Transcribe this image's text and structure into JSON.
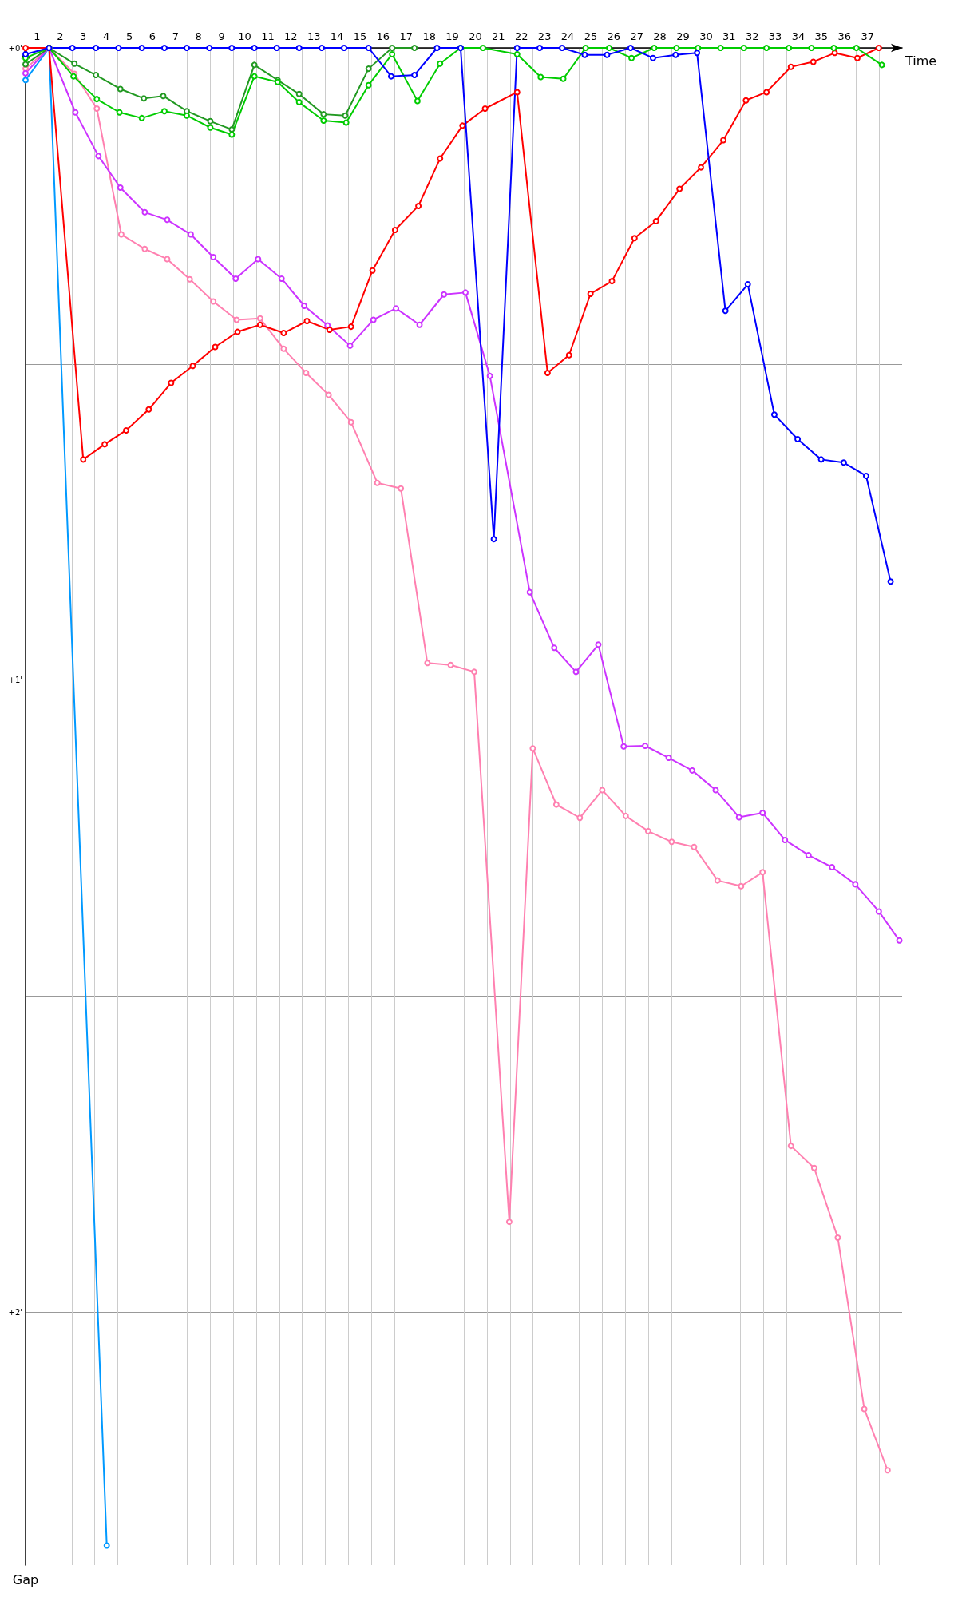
{
  "chart_data": {
    "type": "line",
    "xlabel": "Time",
    "ylabel": "Gap",
    "marker": "circle",
    "grid": true,
    "xlim": [
      0,
      38
    ],
    "ylim": [
      2.4,
      0
    ],
    "xticks": [
      {
        "value": 0.5,
        "label": "1"
      },
      {
        "value": 1.5,
        "label": "2"
      },
      {
        "value": 2.5,
        "label": "3"
      },
      {
        "value": 3.5,
        "label": "4"
      },
      {
        "value": 4.5,
        "label": "5"
      },
      {
        "value": 5.5,
        "label": "6"
      },
      {
        "value": 6.5,
        "label": "7"
      },
      {
        "value": 7.5,
        "label": "8"
      },
      {
        "value": 8.5,
        "label": "9"
      },
      {
        "value": 9.5,
        "label": "10"
      },
      {
        "value": 10.5,
        "label": "11"
      },
      {
        "value": 11.5,
        "label": "12"
      },
      {
        "value": 12.5,
        "label": "13"
      },
      {
        "value": 13.5,
        "label": "14"
      },
      {
        "value": 14.5,
        "label": "15"
      },
      {
        "value": 15.5,
        "label": "16"
      },
      {
        "value": 16.5,
        "label": "17"
      },
      {
        "value": 17.5,
        "label": "18"
      },
      {
        "value": 18.5,
        "label": "19"
      },
      {
        "value": 19.5,
        "label": "20"
      },
      {
        "value": 20.5,
        "label": "21"
      },
      {
        "value": 21.5,
        "label": "22"
      },
      {
        "value": 22.5,
        "label": "23"
      },
      {
        "value": 23.5,
        "label": "24"
      },
      {
        "value": 24.5,
        "label": "25"
      },
      {
        "value": 25.5,
        "label": "26"
      },
      {
        "value": 26.5,
        "label": "27"
      },
      {
        "value": 27.5,
        "label": "28"
      },
      {
        "value": 28.5,
        "label": "29"
      },
      {
        "value": 29.5,
        "label": "30"
      },
      {
        "value": 30.5,
        "label": "31"
      },
      {
        "value": 31.5,
        "label": "32"
      },
      {
        "value": 32.5,
        "label": "33"
      },
      {
        "value": 33.5,
        "label": "34"
      },
      {
        "value": 34.5,
        "label": "35"
      },
      {
        "value": 35.5,
        "label": "36"
      },
      {
        "value": 36.5,
        "label": "37"
      },
      {
        "value": 1,
        "label": null
      },
      {
        "value": 2,
        "label": null
      },
      {
        "value": 3,
        "label": null
      },
      {
        "value": 4,
        "label": null
      },
      {
        "value": 5,
        "label": null
      },
      {
        "value": 6,
        "label": null
      },
      {
        "value": 7,
        "label": null
      },
      {
        "value": 8,
        "label": null
      },
      {
        "value": 9,
        "label": null
      },
      {
        "value": 10,
        "label": null
      },
      {
        "value": 11,
        "label": null
      },
      {
        "value": 12,
        "label": null
      },
      {
        "value": 13,
        "label": null
      },
      {
        "value": 14,
        "label": null
      },
      {
        "value": 15,
        "label": null
      },
      {
        "value": 16,
        "label": null
      },
      {
        "value": 17,
        "label": null
      },
      {
        "value": 18,
        "label": null
      },
      {
        "value": 19,
        "label": null
      },
      {
        "value": 20,
        "label": null
      },
      {
        "value": 21,
        "label": null
      },
      {
        "value": 22,
        "label": null
      },
      {
        "value": 23,
        "label": null
      },
      {
        "value": 24,
        "label": null
      },
      {
        "value": 25,
        "label": null
      },
      {
        "value": 26,
        "label": null
      },
      {
        "value": 27,
        "label": null
      },
      {
        "value": 28,
        "label": null
      },
      {
        "value": 29,
        "label": null
      },
      {
        "value": 30,
        "label": null
      },
      {
        "value": 31,
        "label": null
      },
      {
        "value": 32,
        "label": null
      },
      {
        "value": 33,
        "label": null
      },
      {
        "value": 34,
        "label": null
      },
      {
        "value": 35,
        "label": null
      },
      {
        "value": 36,
        "label": null
      },
      {
        "value": 37,
        "label": null
      }
    ],
    "yticks": [
      {
        "value": 0,
        "label": "+0'"
      },
      {
        "value": 0.5,
        "label": null
      },
      {
        "value": 1,
        "label": "+1'"
      },
      {
        "value": 1.5,
        "label": null
      },
      {
        "value": 2,
        "label": "+2'"
      }
    ],
    "series": [
      {
        "color": "#0099ff",
        "x": [
          0,
          1.02,
          3.52
        ],
        "values": [
          0.051,
          0,
          2.369
        ]
      },
      {
        "color": "#ff80b0",
        "x": [
          0,
          1.02,
          2.12,
          3.09,
          4.15,
          5.17,
          6.14,
          7.12,
          8.14,
          9.15,
          10.17,
          11.19,
          12.16,
          13.14,
          14.11,
          15.25,
          16.27,
          17.42,
          18.43,
          19.45,
          20.97,
          21.99,
          23.01,
          24.03,
          25.0,
          26.02,
          26.99,
          28.01,
          28.98,
          30.0,
          31.02,
          31.95,
          33.18,
          34.19,
          35.21,
          36.36,
          37.37
        ],
        "values": [
          0.033,
          0,
          0.041,
          0.096,
          0.295,
          0.318,
          0.334,
          0.366,
          0.401,
          0.43,
          0.428,
          0.476,
          0.514,
          0.549,
          0.592,
          0.688,
          0.697,
          0.973,
          0.976,
          0.987,
          1.857,
          1.108,
          1.197,
          1.218,
          1.174,
          1.215,
          1.239,
          1.256,
          1.264,
          1.317,
          1.326,
          1.304,
          1.737,
          1.772,
          1.882,
          2.153,
          2.25
        ]
      },
      {
        "color": "#cc33ff",
        "x": [
          0,
          1.02,
          2.16,
          3.16,
          4.11,
          5.17,
          6.14,
          7.16,
          8.14,
          9.11,
          10.08,
          11.1,
          12.08,
          13.09,
          14.07,
          15.08,
          16.06,
          17.08,
          18.14,
          19.07,
          20.13,
          21.86,
          22.92,
          23.86,
          24.83,
          25.93,
          26.86,
          27.88,
          28.9,
          29.92,
          30.93,
          31.95,
          32.92,
          33.94,
          34.96,
          35.97,
          36.99,
          37.88
        ],
        "values": [
          0.04,
          0,
          0.102,
          0.171,
          0.221,
          0.26,
          0.272,
          0.295,
          0.331,
          0.365,
          0.334,
          0.365,
          0.408,
          0.439,
          0.471,
          0.43,
          0.412,
          0.438,
          0.39,
          0.387,
          0.519,
          0.861,
          0.949,
          0.987,
          0.944,
          1.105,
          1.104,
          1.123,
          1.143,
          1.174,
          1.217,
          1.21,
          1.253,
          1.277,
          1.296,
          1.323,
          1.366,
          1.412
        ]
      },
      {
        "color": "#ff0000",
        "x": [
          0,
          1.02,
          2.5,
          3.43,
          4.36,
          5.34,
          6.31,
          7.25,
          8.22,
          9.19,
          10.17,
          11.19,
          12.2,
          13.18,
          14.11,
          15.04,
          16.02,
          17.03,
          17.97,
          18.94,
          19.92,
          21.31,
          22.63,
          23.56,
          24.49,
          25.42,
          26.4,
          27.33,
          28.35,
          29.28,
          30.25,
          31.23,
          32.12,
          33.18,
          34.15,
          35.08,
          36.06,
          36.99
        ],
        "values": [
          0,
          0,
          0.651,
          0.627,
          0.605,
          0.572,
          0.53,
          0.503,
          0.473,
          0.449,
          0.438,
          0.451,
          0.432,
          0.446,
          0.441,
          0.352,
          0.288,
          0.25,
          0.175,
          0.123,
          0.096,
          0.07,
          0.514,
          0.486,
          0.389,
          0.369,
          0.301,
          0.274,
          0.223,
          0.189,
          0.146,
          0.083,
          0.07,
          0.03,
          0.022,
          0.008,
          0.016,
          0
        ]
      },
      {
        "color": "#229922",
        "x": [
          0,
          1.02,
          2.12,
          3.05,
          4.11,
          5.13,
          5.97,
          6.99,
          8.01,
          8.94,
          9.92,
          10.93,
          11.86,
          12.92,
          13.86,
          14.87,
          15.89,
          16.86
        ],
        "values": [
          0.026,
          0,
          0.025,
          0.043,
          0.065,
          0.08,
          0.076,
          0.1,
          0.116,
          0.129,
          0.027,
          0.051,
          0.073,
          0.105,
          0.107,
          0.033,
          0,
          0
        ]
      },
      {
        "color": "#00cc00",
        "x": [
          0,
          1.02,
          2.08,
          3.09,
          4.07,
          5.04,
          6.02,
          6.99,
          8.01,
          8.94,
          9.92,
          10.93,
          11.86,
          12.92,
          13.9,
          14.87,
          15.89,
          16.99,
          17.97,
          18.86,
          19.83,
          21.31,
          22.33,
          23.31,
          24.28,
          25.3,
          26.27,
          27.25,
          28.22,
          29.15,
          30.13,
          31.14,
          32.12,
          33.09,
          34.07,
          35.04,
          36.02,
          37.12
        ],
        "values": [
          0.016,
          0,
          0.045,
          0.081,
          0.102,
          0.111,
          0.1,
          0.107,
          0.126,
          0.137,
          0.045,
          0.054,
          0.086,
          0.115,
          0.118,
          0.059,
          0.01,
          0.084,
          0.025,
          0,
          0,
          0.01,
          0.046,
          0.049,
          0,
          0,
          0.016,
          0,
          0,
          0,
          0,
          0,
          0,
          0,
          0,
          0,
          0,
          0.027
        ]
      },
      {
        "color": "#0000ff",
        "x": [
          0,
          1.02,
          2.03,
          3.05,
          4.03,
          5.04,
          6.02,
          6.99,
          7.97,
          8.94,
          9.92,
          10.89,
          11.86,
          12.84,
          13.81,
          14.87,
          15.85,
          16.86,
          17.84,
          18.86,
          20.3,
          21.31,
          22.29,
          23.26,
          24.24,
          25.21,
          26.23,
          27.2,
          28.18,
          29.11,
          30.34,
          31.31,
          32.46,
          33.47,
          34.49,
          35.47,
          36.44,
          37.5
        ],
        "values": [
          0.01,
          0,
          0,
          0,
          0,
          0,
          0,
          0,
          0,
          0,
          0,
          0,
          0,
          0,
          0,
          0,
          0.045,
          0.043,
          0,
          0,
          0.777,
          0,
          0,
          0,
          0.011,
          0.011,
          0,
          0.016,
          0.011,
          0.008,
          0.416,
          0.374,
          0.58,
          0.619,
          0.651,
          0.656,
          0.677,
          0.844
        ]
      }
    ]
  }
}
